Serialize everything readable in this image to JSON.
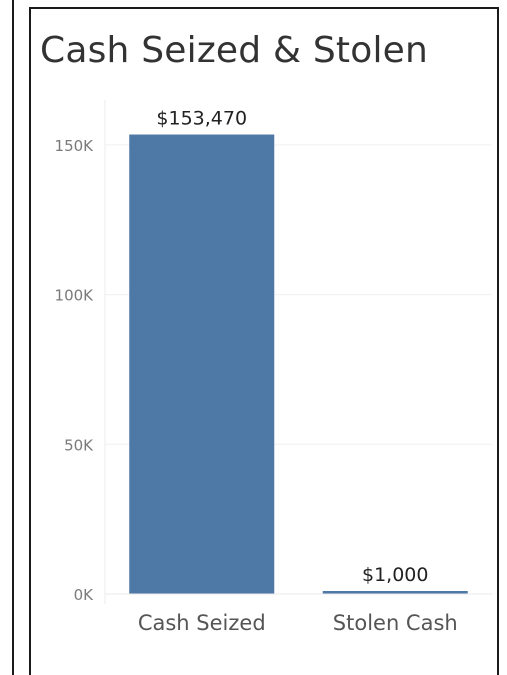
{
  "chart_data": {
    "type": "bar",
    "title": "Cash Seized & Stolen",
    "categories": [
      "Cash Seized",
      "Stolen Cash"
    ],
    "values": [
      153470,
      1000
    ],
    "data_labels": [
      "$153,470",
      "$1,000"
    ],
    "yticks": [
      0,
      50000,
      100000,
      150000
    ],
    "ytick_labels": [
      "0K",
      "50K",
      "100K",
      "150K"
    ],
    "ylim": [
      0,
      165000
    ],
    "xlabel": "",
    "ylabel": "",
    "grid": true,
    "bar_color": "#4e79a7",
    "gridline_color": "#f0f0f0"
  }
}
